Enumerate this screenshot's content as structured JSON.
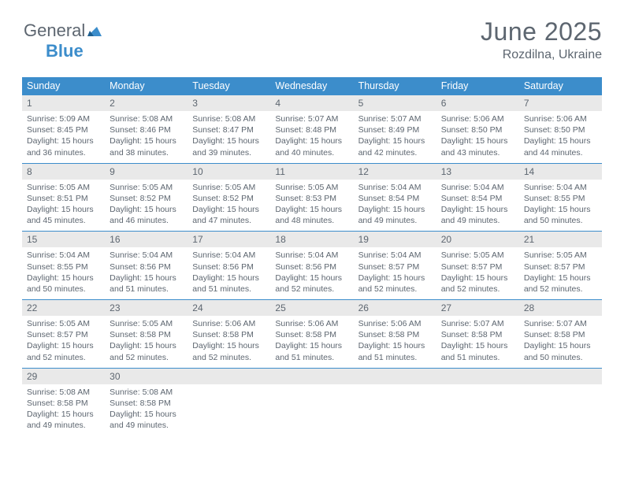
{
  "logo": {
    "text1": "General",
    "text2": "Blue"
  },
  "header": {
    "title": "June 2025",
    "location": "Rozdilna, Ukraine"
  },
  "colors": {
    "accent": "#3c8dcb",
    "text": "#5d6670",
    "num_bg": "#e9e9e9",
    "background": "#ffffff"
  },
  "dow": [
    "Sunday",
    "Monday",
    "Tuesday",
    "Wednesday",
    "Thursday",
    "Friday",
    "Saturday"
  ],
  "weeks": [
    [
      {
        "n": "1",
        "sr": "5:09 AM",
        "ss": "8:45 PM",
        "dl": "15 hours and 36 minutes."
      },
      {
        "n": "2",
        "sr": "5:08 AM",
        "ss": "8:46 PM",
        "dl": "15 hours and 38 minutes."
      },
      {
        "n": "3",
        "sr": "5:08 AM",
        "ss": "8:47 PM",
        "dl": "15 hours and 39 minutes."
      },
      {
        "n": "4",
        "sr": "5:07 AM",
        "ss": "8:48 PM",
        "dl": "15 hours and 40 minutes."
      },
      {
        "n": "5",
        "sr": "5:07 AM",
        "ss": "8:49 PM",
        "dl": "15 hours and 42 minutes."
      },
      {
        "n": "6",
        "sr": "5:06 AM",
        "ss": "8:50 PM",
        "dl": "15 hours and 43 minutes."
      },
      {
        "n": "7",
        "sr": "5:06 AM",
        "ss": "8:50 PM",
        "dl": "15 hours and 44 minutes."
      }
    ],
    [
      {
        "n": "8",
        "sr": "5:05 AM",
        "ss": "8:51 PM",
        "dl": "15 hours and 45 minutes."
      },
      {
        "n": "9",
        "sr": "5:05 AM",
        "ss": "8:52 PM",
        "dl": "15 hours and 46 minutes."
      },
      {
        "n": "10",
        "sr": "5:05 AM",
        "ss": "8:52 PM",
        "dl": "15 hours and 47 minutes."
      },
      {
        "n": "11",
        "sr": "5:05 AM",
        "ss": "8:53 PM",
        "dl": "15 hours and 48 minutes."
      },
      {
        "n": "12",
        "sr": "5:04 AM",
        "ss": "8:54 PM",
        "dl": "15 hours and 49 minutes."
      },
      {
        "n": "13",
        "sr": "5:04 AM",
        "ss": "8:54 PM",
        "dl": "15 hours and 49 minutes."
      },
      {
        "n": "14",
        "sr": "5:04 AM",
        "ss": "8:55 PM",
        "dl": "15 hours and 50 minutes."
      }
    ],
    [
      {
        "n": "15",
        "sr": "5:04 AM",
        "ss": "8:55 PM",
        "dl": "15 hours and 50 minutes."
      },
      {
        "n": "16",
        "sr": "5:04 AM",
        "ss": "8:56 PM",
        "dl": "15 hours and 51 minutes."
      },
      {
        "n": "17",
        "sr": "5:04 AM",
        "ss": "8:56 PM",
        "dl": "15 hours and 51 minutes."
      },
      {
        "n": "18",
        "sr": "5:04 AM",
        "ss": "8:56 PM",
        "dl": "15 hours and 52 minutes."
      },
      {
        "n": "19",
        "sr": "5:04 AM",
        "ss": "8:57 PM",
        "dl": "15 hours and 52 minutes."
      },
      {
        "n": "20",
        "sr": "5:05 AM",
        "ss": "8:57 PM",
        "dl": "15 hours and 52 minutes."
      },
      {
        "n": "21",
        "sr": "5:05 AM",
        "ss": "8:57 PM",
        "dl": "15 hours and 52 minutes."
      }
    ],
    [
      {
        "n": "22",
        "sr": "5:05 AM",
        "ss": "8:57 PM",
        "dl": "15 hours and 52 minutes."
      },
      {
        "n": "23",
        "sr": "5:05 AM",
        "ss": "8:58 PM",
        "dl": "15 hours and 52 minutes."
      },
      {
        "n": "24",
        "sr": "5:06 AM",
        "ss": "8:58 PM",
        "dl": "15 hours and 52 minutes."
      },
      {
        "n": "25",
        "sr": "5:06 AM",
        "ss": "8:58 PM",
        "dl": "15 hours and 51 minutes."
      },
      {
        "n": "26",
        "sr": "5:06 AM",
        "ss": "8:58 PM",
        "dl": "15 hours and 51 minutes."
      },
      {
        "n": "27",
        "sr": "5:07 AM",
        "ss": "8:58 PM",
        "dl": "15 hours and 51 minutes."
      },
      {
        "n": "28",
        "sr": "5:07 AM",
        "ss": "8:58 PM",
        "dl": "15 hours and 50 minutes."
      }
    ],
    [
      {
        "n": "29",
        "sr": "5:08 AM",
        "ss": "8:58 PM",
        "dl": "15 hours and 49 minutes."
      },
      {
        "n": "30",
        "sr": "5:08 AM",
        "ss": "8:58 PM",
        "dl": "15 hours and 49 minutes."
      },
      null,
      null,
      null,
      null,
      null
    ]
  ],
  "labels": {
    "sunrise": "Sunrise: ",
    "sunset": "Sunset: ",
    "daylight": "Daylight: "
  }
}
